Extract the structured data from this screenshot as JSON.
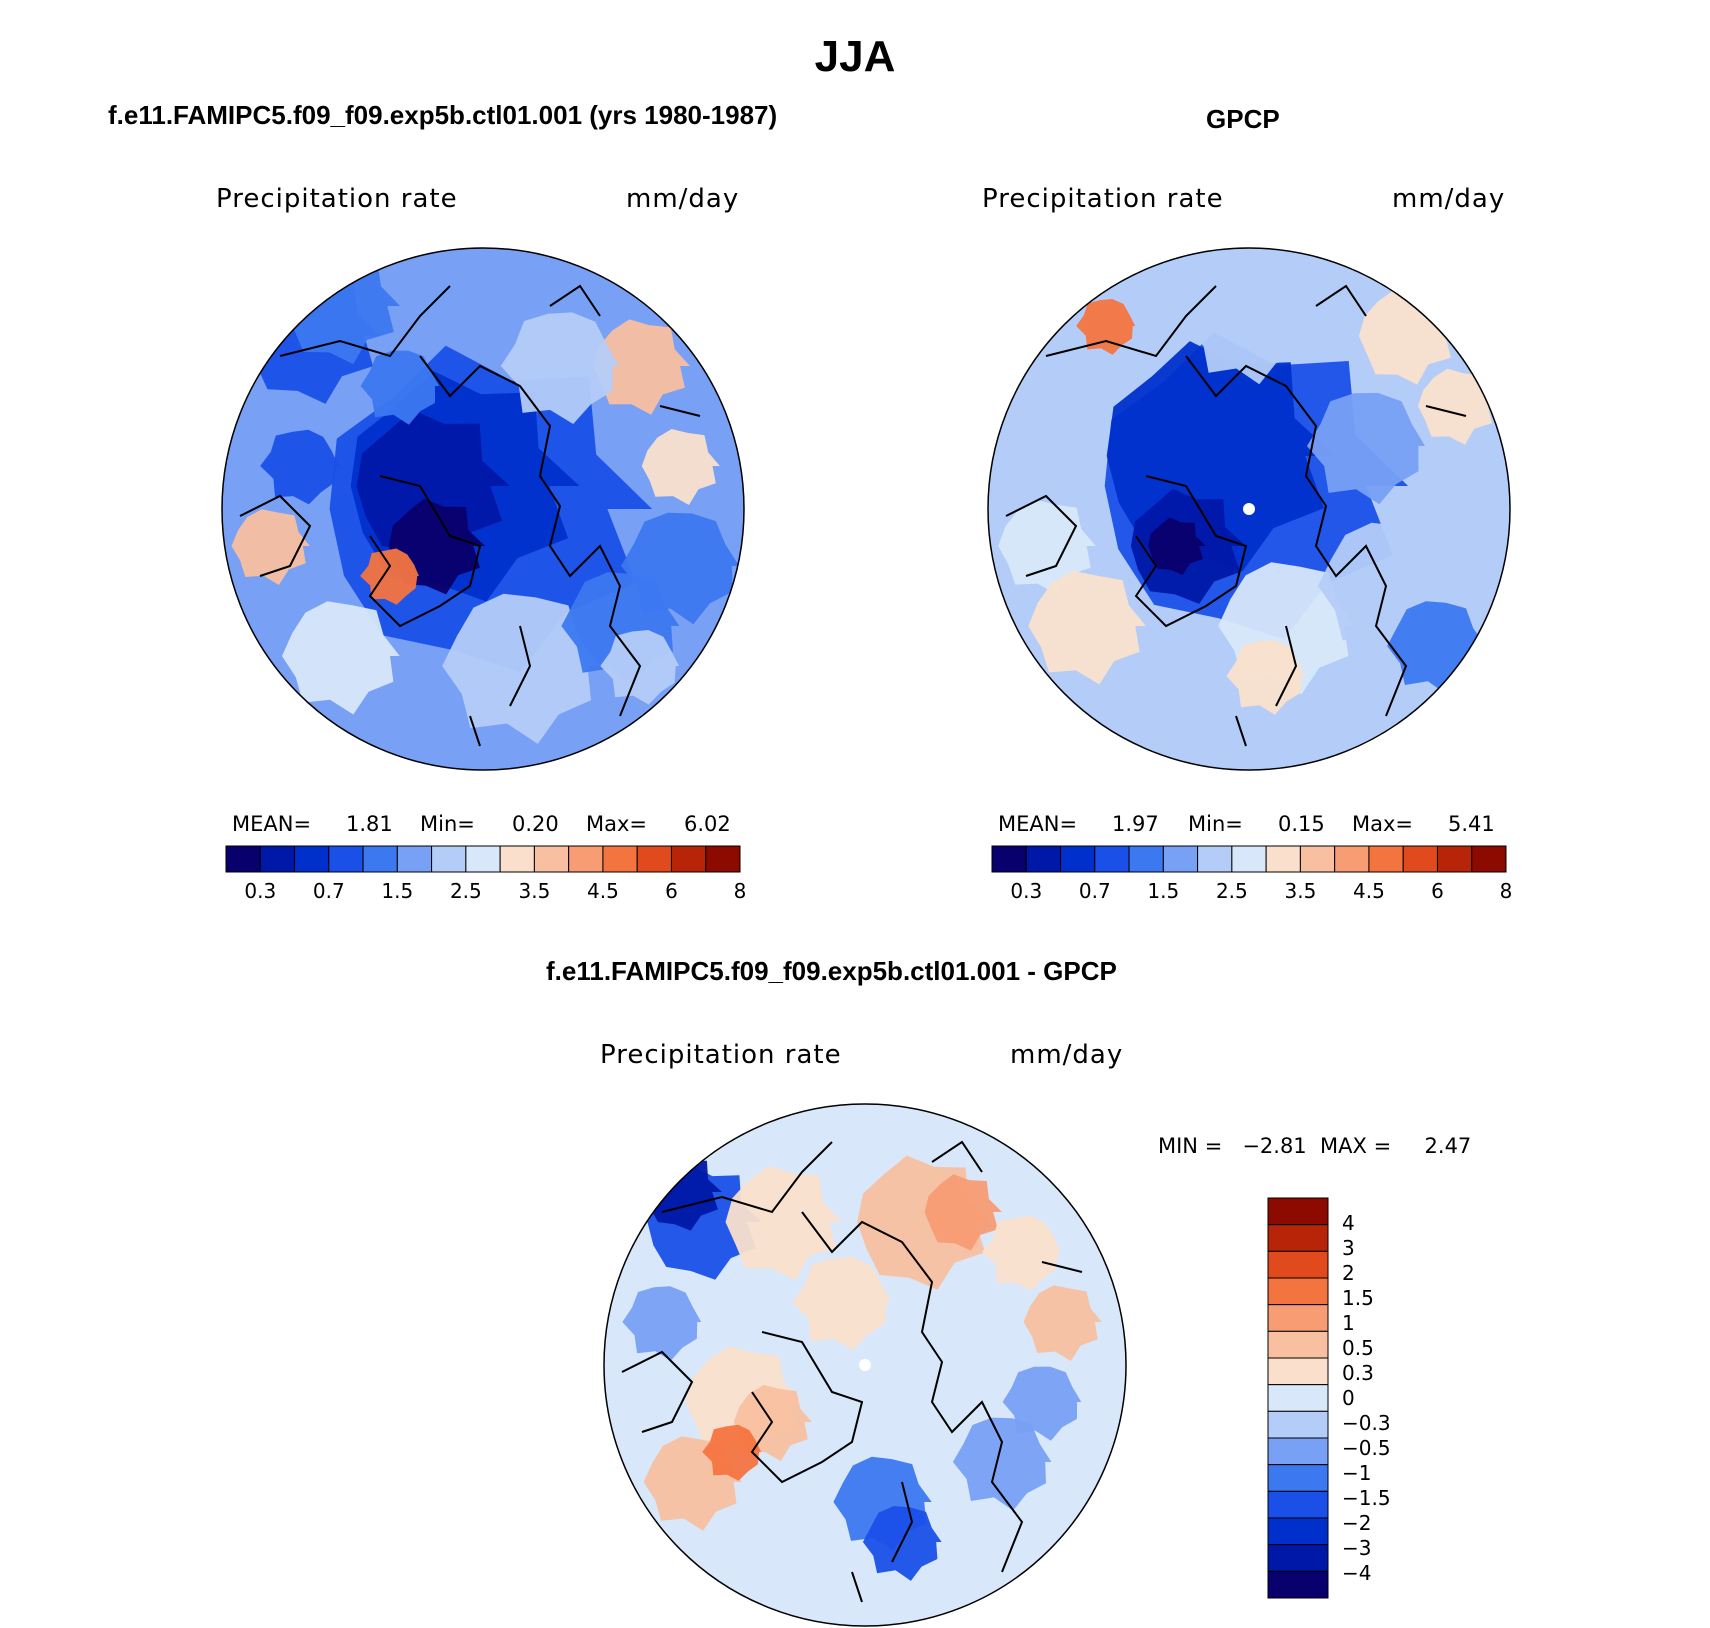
{
  "title": "JJA",
  "palettes": {
    "absolute": [
      "#08006c",
      "#0018a8",
      "#0030cc",
      "#1a50e8",
      "#3c78f0",
      "#78a0f4",
      "#b4ccf8",
      "#d8e8fa",
      "#fae0cc",
      "#f8c0a0",
      "#f89c74",
      "#f47440",
      "#e04a1c",
      "#b82408",
      "#8c0a00"
    ],
    "difference": [
      "#08006c",
      "#0018a8",
      "#0030cc",
      "#1a50e8",
      "#3c78f0",
      "#78a0f4",
      "#b4ccf8",
      "#d8e8fa",
      "#fae0cc",
      "#f8c0a0",
      "#f89c74",
      "#f47440",
      "#e04a1c",
      "#b82408",
      "#8c0a00"
    ]
  },
  "panels": [
    {
      "title": "f.e11.FAMIPC5.f09_f09.exp5b.ctl01.001 (yrs 1980-1987)",
      "variable": "Precipitation rate",
      "units": "mm/day",
      "mean_label": "MEAN=",
      "mean": "1.81",
      "min_label": "Min=",
      "min": "0.20",
      "max_label": "Max=",
      "max": "6.02"
    },
    {
      "title": "GPCP",
      "variable": "Precipitation rate",
      "units": "mm/day",
      "mean_label": "MEAN=",
      "mean": "1.97",
      "min_label": "Min=",
      "min": "0.15",
      "max_label": "Max=",
      "max": "5.41"
    },
    {
      "title": "f.e11.FAMIPC5.f09_f09.exp5b.ctl01.001 - GPCP",
      "variable": "Precipitation rate",
      "units": "mm/day",
      "minmax": "MIN =   −2.81  MAX =     2.47"
    }
  ],
  "colorbar_abs": {
    "labels": [
      "0.3",
      "0.7",
      "1.5",
      "2.5",
      "3.5",
      "4.5",
      "6",
      "8"
    ]
  },
  "colorbar_diff": {
    "labels": [
      "4",
      "3",
      "2",
      "1.5",
      "1",
      "0.5",
      "0.3",
      "0",
      "−0.3",
      "−0.5",
      "−1",
      "−1.5",
      "−2",
      "−3",
      "−4"
    ]
  }
}
